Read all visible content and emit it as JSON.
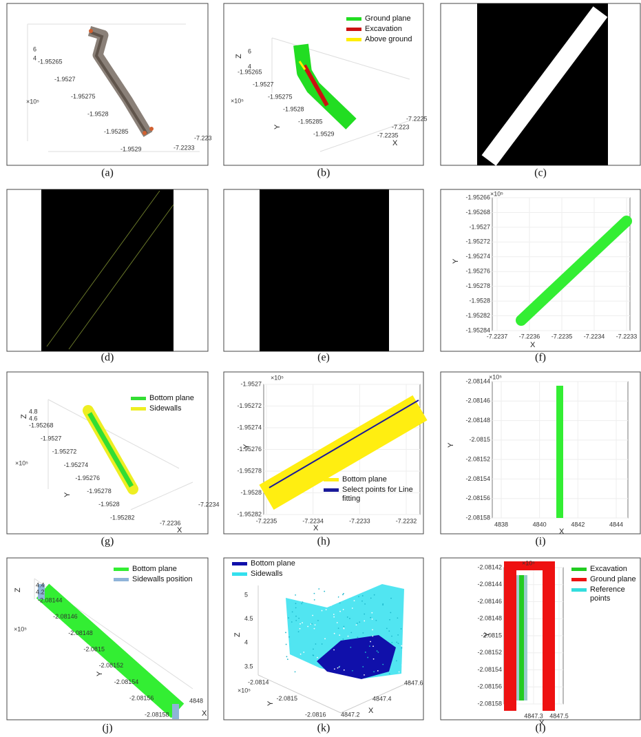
{
  "panels": [
    {
      "caption": "(a)",
      "y_ticks": [
        "-1.95265",
        "-1.9527",
        "-1.95275",
        "-1.9528",
        "-1.95285",
        "-1.9529"
      ],
      "x_ticks": [
        "-7.2233",
        "-7.223"
      ],
      "z_ticks": [
        "6",
        "4"
      ],
      "exponent": "×10⁵"
    },
    {
      "caption": "(b)",
      "legend": [
        {
          "label": "Ground plane",
          "color": "#22dd22"
        },
        {
          "label": "Excavation",
          "color": "#cc1111"
        },
        {
          "label": "Above ground",
          "color": "#ffee00"
        }
      ],
      "z_label": "Z",
      "z_ticks": [
        "6",
        "4"
      ],
      "y_ticks": [
        "-1.95265",
        "-1.9527",
        "-1.95275",
        "-1.9528",
        "-1.95285",
        "-1.9529"
      ],
      "exponent": "×10⁵",
      "y_label": "Y",
      "x_ticks": [
        "-7.2225",
        "-7.223",
        "-7.2235"
      ],
      "x_label": "X"
    },
    {
      "caption": "(c)"
    },
    {
      "caption": "(d)"
    },
    {
      "caption": "(e)"
    },
    {
      "caption": "(f)",
      "y_ticks": [
        "-1.95266",
        "-1.95268",
        "-1.9527",
        "-1.95272",
        "-1.95274",
        "-1.95276",
        "-1.95278",
        "-1.9528",
        "-1.95282",
        "-1.95284"
      ],
      "exponent": "×10⁵",
      "y_label": "Y",
      "x_ticks": [
        "-7.2237",
        "-7.2236",
        "-7.2235",
        "-7.2234",
        "-7.2233"
      ],
      "x_label": "X"
    },
    {
      "caption": "(g)",
      "legend": [
        {
          "label": "Bottom plane",
          "color": "#33dd33"
        },
        {
          "label": "Sidewalls",
          "color": "#eeee22"
        }
      ],
      "z_label": "Z",
      "z_ticks": [
        "4.8",
        "4.6"
      ],
      "y_ticks": [
        "-1.95268",
        "-1.9527",
        "-1.95272",
        "-1.95274",
        "-1.95276",
        "-1.95278",
        "-1.9528",
        "-1.95282"
      ],
      "exponent": "×10⁵",
      "y_label": "Y",
      "x_ticks": [
        "-7.2234",
        "-7.2236"
      ],
      "x_label": "X"
    },
    {
      "caption": "(h)",
      "legend": [
        {
          "label": "Bottom plane",
          "color": "#ffee11"
        },
        {
          "label": "Select points for Line fitting",
          "color": "#1a1a99"
        }
      ],
      "y_ticks": [
        "-1.9527",
        "-1.95272",
        "-1.95274",
        "-1.95276",
        "-1.95278",
        "-1.9528",
        "-1.95282"
      ],
      "exponent": "×10⁵",
      "y_label": "Y",
      "x_ticks": [
        "-7.2235",
        "-7.2234",
        "-7.2233",
        "-7.2232"
      ],
      "x_label": "X"
    },
    {
      "caption": "(i)",
      "y_ticks": [
        "-2.08144",
        "-2.08146",
        "-2.08148",
        "-2.0815",
        "-2.08152",
        "-2.08154",
        "-2.08156",
        "-2.08158"
      ],
      "exponent": "×10⁵",
      "y_label": "Y",
      "x_ticks": [
        "4838",
        "4840",
        "4842",
        "4844"
      ],
      "x_label": "X"
    },
    {
      "caption": "(j)",
      "legend": [
        {
          "label": "Bottom plane",
          "color": "#33ee33"
        },
        {
          "label": "Sidewalls position",
          "color": "#8fb4d9"
        }
      ],
      "z_label": "Z",
      "z_ticks": [
        "4.4",
        "4.2"
      ],
      "y_ticks": [
        "-2.08144",
        "-2.08146",
        "-2.08148",
        "-2.0815",
        "-2.08152",
        "-2.08154",
        "-2.08156",
        "-2.08158"
      ],
      "exponent": "×10⁵",
      "y_label": "Y",
      "x_ticks": [
        "4848"
      ],
      "x_label": "X"
    },
    {
      "caption": "(k)",
      "legend": [
        {
          "label": "Bottom plane",
          "color": "#1010aa"
        },
        {
          "label": "Sidewalls",
          "color": "#33e0ee"
        }
      ],
      "z_ticks": [
        "5",
        "4.5",
        "4",
        "3.5"
      ],
      "z_label": "Z",
      "y_ticks": [
        "-2.0814",
        "-2.0815",
        "-2.0816"
      ],
      "exponent": "×10⁵",
      "y_label": "Y",
      "x_ticks": [
        "4847.2",
        "4847.4",
        "4847.6"
      ],
      "x_label": "X"
    },
    {
      "caption": "(l)",
      "legend": [
        {
          "label": "Excavation",
          "color": "#22cc22"
        },
        {
          "label": "Ground plane",
          "color": "#ee1111"
        },
        {
          "label": "Reference points",
          "color": "#33dddd"
        }
      ],
      "y_ticks": [
        "-2.08142",
        "-2.08144",
        "-2.08146",
        "-2.08148",
        "-2.0815",
        "-2.08152",
        "-2.08154",
        "-2.08156",
        "-2.08158"
      ],
      "exponent": "×10⁵",
      "y_label": "Y",
      "x_ticks": [
        "4847.3",
        "4847.5"
      ],
      "x_label": "X"
    }
  ]
}
